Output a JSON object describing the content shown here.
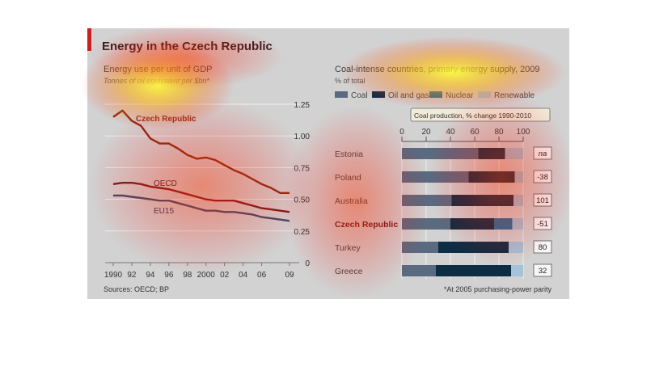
{
  "title": "Energy in the Czech Republic",
  "source": "Sources: OECD; BP",
  "footnote": "*At 2005 purchasing-power parity",
  "colors": {
    "accent_red": "#cc1f1f",
    "background": "#d2d2d2",
    "czech_line": "#8a2a10",
    "oecd_line": "#7a1a1a",
    "eu15_line": "#3a4a6a",
    "coal": "#5a6a80",
    "oil_and_gas": "#0d2d44",
    "nuclear": "#1f6f9c",
    "renewable": "#a3c3d8"
  },
  "chart_data": [
    {
      "type": "line",
      "title": "Energy use per unit of GDP",
      "subtitle": "Tonnes of oil equivalent per $bn*",
      "x": [
        1990,
        1991,
        1992,
        1993,
        1994,
        1995,
        1996,
        1997,
        1998,
        1999,
        2000,
        2001,
        2002,
        2003,
        2004,
        2005,
        2006,
        2007,
        2008,
        2009
      ],
      "x_tick_labels": [
        "1990",
        "92",
        "94",
        "96",
        "98",
        "2000",
        "02",
        "04",
        "06",
        "09"
      ],
      "x_tick_values": [
        1990,
        1992,
        1994,
        1996,
        1998,
        2000,
        2002,
        2004,
        2006,
        2009
      ],
      "y_ticks": [
        "0",
        "0.25",
        "0.50",
        "0.75",
        "1.00",
        "1.25"
      ],
      "ylim": [
        0,
        1.25
      ],
      "grid": true,
      "series": [
        {
          "name": "Czech Republic",
          "values": [
            1.15,
            1.2,
            1.12,
            1.08,
            0.98,
            0.94,
            0.94,
            0.9,
            0.85,
            0.82,
            0.83,
            0.81,
            0.77,
            0.73,
            0.7,
            0.66,
            0.62,
            0.59,
            0.55,
            0.55
          ]
        },
        {
          "name": "OECD",
          "values": [
            0.62,
            0.63,
            0.63,
            0.62,
            0.6,
            0.59,
            0.58,
            0.56,
            0.54,
            0.52,
            0.5,
            0.49,
            0.49,
            0.49,
            0.47,
            0.45,
            0.43,
            0.42,
            0.41,
            0.4
          ]
        },
        {
          "name": "EU15",
          "values": [
            0.53,
            0.53,
            0.52,
            0.51,
            0.5,
            0.49,
            0.49,
            0.47,
            0.45,
            0.43,
            0.41,
            0.41,
            0.4,
            0.4,
            0.39,
            0.38,
            0.36,
            0.35,
            0.34,
            0.33
          ]
        }
      ]
    },
    {
      "type": "bar",
      "stacked": true,
      "orientation": "horizontal",
      "title": "Coal-intense countries, primary energy supply, 2009",
      "subtitle": "% of total",
      "legend": [
        "Coal",
        "Oil and gas",
        "Nuclear",
        "Renewable"
      ],
      "legend_placement": "top",
      "x_ticks": [
        "0",
        "20",
        "40",
        "60",
        "80",
        "100"
      ],
      "xlim": [
        0,
        100
      ],
      "categories": [
        "Estonia",
        "Poland",
        "Australia",
        "Czech Republic",
        "Turkey",
        "Greece"
      ],
      "series": [
        {
          "name": "Coal",
          "values": [
            63,
            55,
            41,
            40,
            30,
            28
          ]
        },
        {
          "name": "Oil and gas",
          "values": [
            22,
            38,
            51,
            36,
            58,
            62
          ]
        },
        {
          "name": "Nuclear",
          "values": [
            0,
            0,
            0,
            15,
            0,
            0
          ]
        },
        {
          "name": "Renewable",
          "values": [
            15,
            7,
            8,
            9,
            12,
            10
          ]
        }
      ],
      "side_column": {
        "title": "Coal production, % change 1990-2010",
        "values": [
          "na",
          "-38",
          "101",
          "-51",
          "80",
          "32"
        ]
      }
    }
  ]
}
